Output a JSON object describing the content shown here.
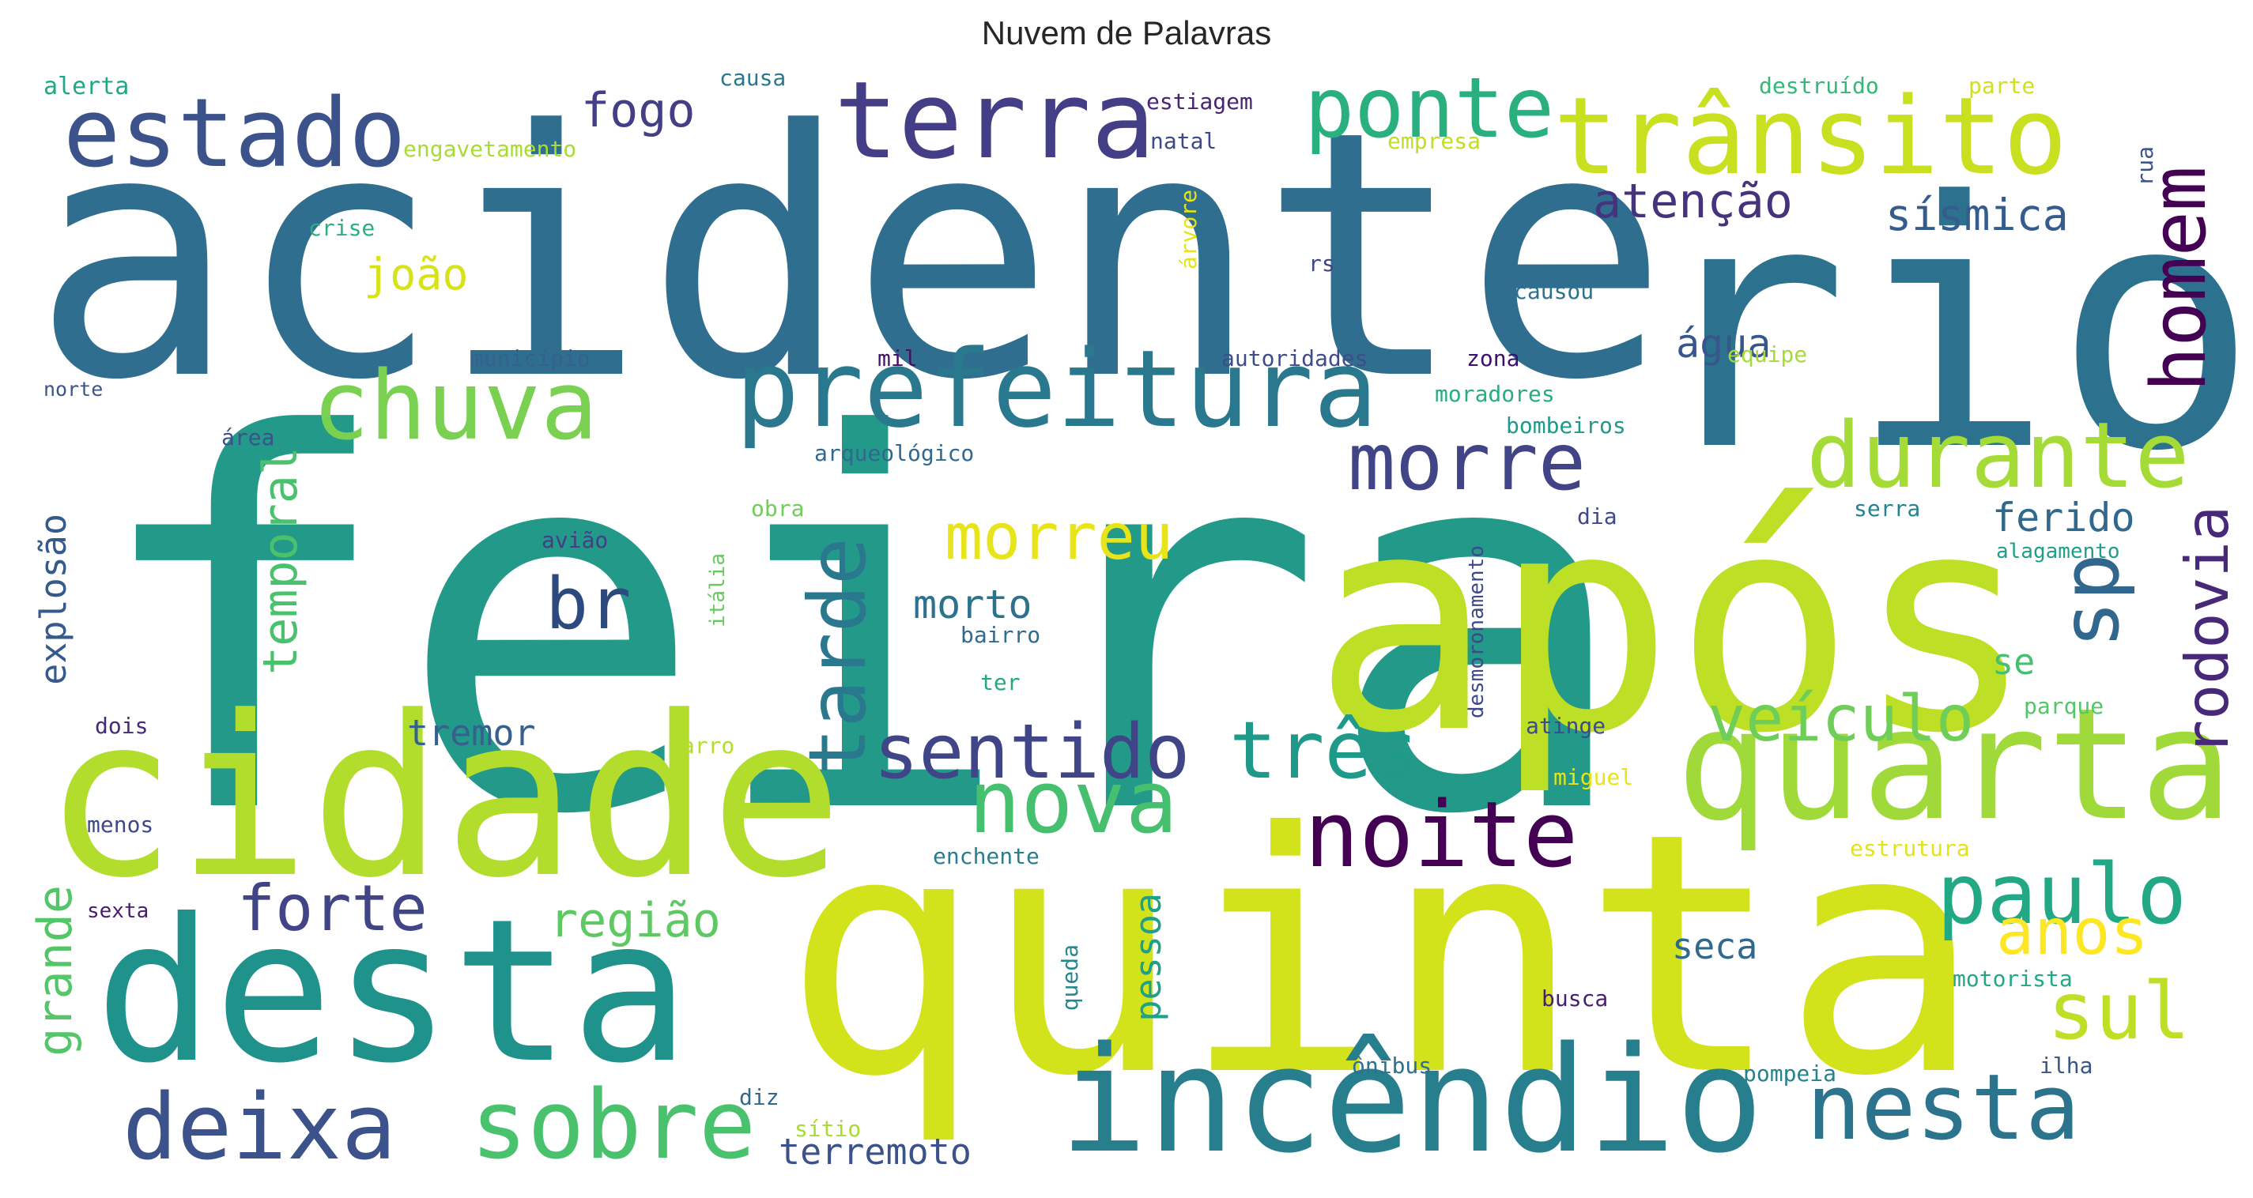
{
  "title": "Nuvem de Palavras",
  "words": [
    {
      "text": "acidente",
      "color": "#2f6e8f"
    },
    {
      "text": "feira",
      "color": "#23998a"
    },
    {
      "text": "rio",
      "color": "#2c728e"
    },
    {
      "text": "após",
      "color": "#bddf26"
    },
    {
      "text": "quinta",
      "color": "#d2e21b"
    },
    {
      "text": "cidade",
      "color": "#b2dd2d"
    },
    {
      "text": "desta",
      "color": "#20928c"
    },
    {
      "text": "incêndio",
      "color": "#277f8e"
    },
    {
      "text": "quarta",
      "color": "#9fda3a"
    },
    {
      "text": "prefeitura",
      "color": "#2a788e"
    },
    {
      "text": "terra",
      "color": "#433e85"
    },
    {
      "text": "trânsito",
      "color": "#c8e020"
    },
    {
      "text": "estado",
      "color": "#3b528b"
    },
    {
      "text": "chuva",
      "color": "#7ad151"
    },
    {
      "text": "durante",
      "color": "#a5db36"
    },
    {
      "text": "ponte",
      "color": "#2ab07f"
    },
    {
      "text": "morre",
      "color": "#414487"
    },
    {
      "text": "nesta",
      "color": "#2c738e"
    },
    {
      "text": "sobre",
      "color": "#4ac16d"
    },
    {
      "text": "deixa",
      "color": "#3b528b"
    },
    {
      "text": "nova",
      "color": "#46c06f"
    },
    {
      "text": "três",
      "color": "#1f9a8a"
    },
    {
      "text": "noite",
      "color": "#440154"
    },
    {
      "text": "sentido",
      "color": "#404588"
    },
    {
      "text": "tarde",
      "color": "#2a788e"
    },
    {
      "text": "paulo",
      "color": "#22a884"
    },
    {
      "text": "sul",
      "color": "#bddf26"
    },
    {
      "text": "veículo",
      "color": "#6ece58"
    },
    {
      "text": "homem",
      "color": "#440154"
    },
    {
      "text": "sp",
      "color": "#31668e"
    },
    {
      "text": "rodovia",
      "color": "#482878"
    },
    {
      "text": "forte",
      "color": "#414487"
    },
    {
      "text": "br",
      "color": "#2d4a7f"
    },
    {
      "text": "morreu",
      "color": "#e7e419"
    },
    {
      "text": "anos",
      "color": "#fde725"
    },
    {
      "text": "região",
      "color": "#5ec962"
    },
    {
      "text": "grande",
      "color": "#54c568"
    },
    {
      "text": "temporal",
      "color": "#4ac16d"
    },
    {
      "text": "atenção",
      "color": "#46337e"
    },
    {
      "text": "fogo",
      "color": "#433e85"
    },
    {
      "text": "sísmica",
      "color": "#365c8d"
    },
    {
      "text": "água",
      "color": "#39568c"
    },
    {
      "text": "ferido",
      "color": "#31688e"
    },
    {
      "text": "morto",
      "color": "#2c728e"
    },
    {
      "text": "explosão",
      "color": "#375a8c"
    },
    {
      "text": "pessoa",
      "color": "#1fa088"
    },
    {
      "text": "tremor",
      "color": "#34618d"
    },
    {
      "text": "terremoto",
      "color": "#3b528b"
    },
    {
      "text": "seca",
      "color": "#31688e"
    },
    {
      "text": "se",
      "color": "#46c06f"
    },
    {
      "text": "joão",
      "color": "#d8e219"
    },
    {
      "text": "alerta",
      "color": "#22a785"
    },
    {
      "text": "causa",
      "color": "#2a788e"
    },
    {
      "text": "estiagem",
      "color": "#482475"
    },
    {
      "text": "destruído",
      "color": "#35b779"
    },
    {
      "text": "parte",
      "color": "#d0e11c"
    },
    {
      "text": "engavetamento",
      "color": "#a8db34"
    },
    {
      "text": "natal",
      "color": "#3e4989"
    },
    {
      "text": "empresa",
      "color": "#bddf26"
    },
    {
      "text": "crise",
      "color": "#2ab07f"
    },
    {
      "text": "rs",
      "color": "#404588"
    },
    {
      "text": "rua",
      "color": "#3b528b"
    },
    {
      "text": "árvore",
      "color": "#e5e419"
    },
    {
      "text": "causou",
      "color": "#2c728e"
    },
    {
      "text": "município",
      "color": "#33638d"
    },
    {
      "text": "mil",
      "color": "#471164"
    },
    {
      "text": "autoridades",
      "color": "#3e4c8a"
    },
    {
      "text": "zona",
      "color": "#3b0f70"
    },
    {
      "text": "equipe",
      "color": "#a5db36"
    },
    {
      "text": "norte",
      "color": "#39568c"
    },
    {
      "text": "moradores",
      "color": "#27ad81"
    },
    {
      "text": "área",
      "color": "#3b528b"
    },
    {
      "text": "bombeiros",
      "color": "#1f9a8a"
    },
    {
      "text": "arqueológico",
      "color": "#31688e"
    },
    {
      "text": "obra",
      "color": "#6ece58"
    },
    {
      "text": "dia",
      "color": "#3e4a89"
    },
    {
      "text": "serra",
      "color": "#26828e"
    },
    {
      "text": "avião",
      "color": "#433e85"
    },
    {
      "text": "desmoronamento",
      "color": "#3e4989"
    },
    {
      "text": "alagamento",
      "color": "#1f9e89"
    },
    {
      "text": "itália",
      "color": "#65cb5e"
    },
    {
      "text": "bairro",
      "color": "#306a8e"
    },
    {
      "text": "ter",
      "color": "#22a884"
    },
    {
      "text": "parque",
      "color": "#54c568"
    },
    {
      "text": "dois",
      "color": "#482878"
    },
    {
      "text": "carro",
      "color": "#b5de2b"
    },
    {
      "text": "atinge",
      "color": "#3e4a89"
    },
    {
      "text": "miguel",
      "color": "#e7e419"
    },
    {
      "text": "menos",
      "color": "#3e4989"
    },
    {
      "text": "enchente",
      "color": "#287d8e"
    },
    {
      "text": "estrutura",
      "color": "#e2e418"
    },
    {
      "text": "sexta",
      "color": "#481b6d"
    },
    {
      "text": "queda",
      "color": "#23888e"
    },
    {
      "text": "busca",
      "color": "#481f70"
    },
    {
      "text": "motorista",
      "color": "#22a884"
    },
    {
      "text": "ônibus",
      "color": "#2d708e"
    },
    {
      "text": "pompeia",
      "color": "#26828e"
    },
    {
      "text": "ilha",
      "color": "#39568c"
    },
    {
      "text": "diz",
      "color": "#31688e"
    },
    {
      "text": "sítio",
      "color": "#a8db34"
    }
  ]
}
